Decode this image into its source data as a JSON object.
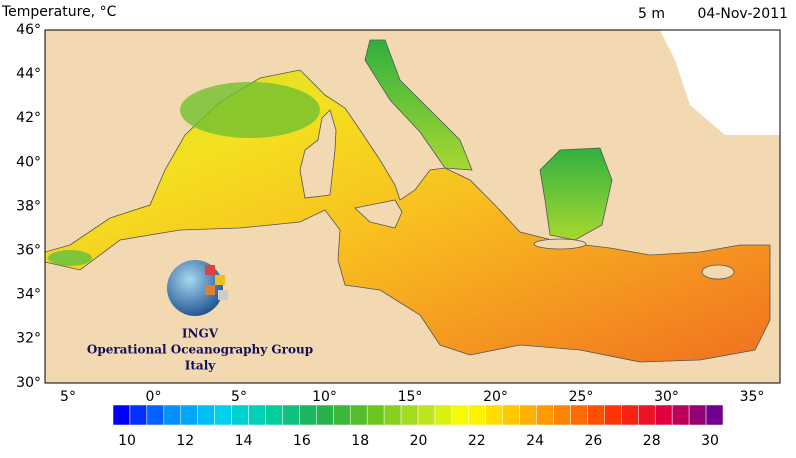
{
  "header": {
    "title": "Temperature, °C",
    "depth": "5 m",
    "date": "04-Nov-2011"
  },
  "map": {
    "lat_labels": [
      "46°",
      "44°",
      "42°",
      "40°",
      "38°",
      "36°",
      "34°",
      "32°",
      "30°"
    ],
    "lon_labels": [
      "5°",
      "0°",
      "5°",
      "10°",
      "15°",
      "20°",
      "25°",
      "30°",
      "35°"
    ]
  },
  "colorbar": {
    "labels": [
      "10",
      "12",
      "14",
      "16",
      "18",
      "20",
      "22",
      "24",
      "26",
      "28",
      "30"
    ]
  },
  "logo": {
    "name": "INGV",
    "group": "Operational Oceanography Group",
    "country": "Italy"
  }
}
